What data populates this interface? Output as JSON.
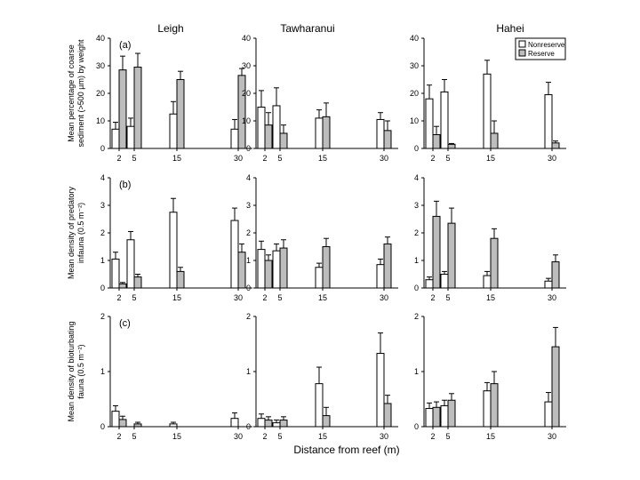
{
  "chart_data": {
    "type": "bar",
    "columns": [
      "Leigh",
      "Tawharanui",
      "Hahei"
    ],
    "x_tick_labels": [
      "2",
      "5",
      "15",
      "30"
    ],
    "xlabel": "Distance from reef (m)",
    "legend": {
      "placement": "top-right of Hahei panel (a)",
      "entries": [
        {
          "name": "Nonreserve",
          "color": "#ffffff"
        },
        {
          "name": "Reserve",
          "color": "#bdbdbd"
        }
      ]
    },
    "rows": [
      {
        "panel_label": "(a)",
        "ylabel_line1": "Mean percentage of coarse",
        "ylabel_line2": "sediment (>500 µm) by weight",
        "ylim": [
          0,
          40
        ],
        "yticks": [
          "0",
          "10",
          "20",
          "30",
          "40"
        ],
        "sites": [
          {
            "site": "Leigh",
            "nonreserve": {
              "values": [
                7,
                8,
                12.5,
                7
              ],
              "errors": [
                2.5,
                3,
                4.5,
                3.5
              ]
            },
            "reserve": {
              "values": [
                28.5,
                29.5,
                25,
                26.5
              ],
              "errors": [
                5,
                5,
                3,
                2.5
              ]
            }
          },
          {
            "site": "Tawharanui",
            "nonreserve": {
              "values": [
                15,
                15.5,
                11,
                10.5
              ],
              "errors": [
                6,
                6.5,
                3,
                2.5
              ]
            },
            "reserve": {
              "values": [
                8.5,
                5.5,
                11.5,
                6.5
              ],
              "errors": [
                4.5,
                3,
                5,
                3.5
              ]
            }
          },
          {
            "site": "Hahei",
            "nonreserve": {
              "values": [
                18,
                20.5,
                27,
                19.5
              ],
              "errors": [
                5,
                4.5,
                5,
                4.5
              ]
            },
            "reserve": {
              "values": [
                5,
                1.5,
                5.5,
                2
              ],
              "errors": [
                3,
                0.3,
                4.5,
                0.7
              ]
            }
          }
        ]
      },
      {
        "panel_label": "(b)",
        "ylabel_line1": "Mean density of predatory",
        "ylabel_line2": "infauna (0.5 m⁻²)",
        "ylim": [
          0,
          4
        ],
        "yticks": [
          "0",
          "1",
          "2",
          "3",
          "4"
        ],
        "sites": [
          {
            "site": "Leigh",
            "nonreserve": {
              "values": [
                1.05,
                1.75,
                2.75,
                2.45
              ],
              "errors": [
                0.25,
                0.3,
                0.5,
                0.45
              ]
            },
            "reserve": {
              "values": [
                0.15,
                0.4,
                0.6,
                1.3
              ],
              "errors": [
                0.05,
                0.1,
                0.15,
                0.3
              ]
            }
          },
          {
            "site": "Tawharanui",
            "nonreserve": {
              "values": [
                1.4,
                1.35,
                0.75,
                0.85
              ],
              "errors": [
                0.3,
                0.25,
                0.15,
                0.2
              ]
            },
            "reserve": {
              "values": [
                1.0,
                1.45,
                1.5,
                1.6
              ],
              "errors": [
                0.2,
                0.3,
                0.3,
                0.25
              ]
            }
          },
          {
            "site": "Hahei",
            "nonreserve": {
              "values": [
                0.3,
                0.5,
                0.45,
                0.25
              ],
              "errors": [
                0.1,
                0.1,
                0.15,
                0.1
              ]
            },
            "reserve": {
              "values": [
                2.6,
                2.35,
                1.8,
                0.95
              ],
              "errors": [
                0.55,
                0.55,
                0.35,
                0.25
              ]
            }
          }
        ]
      },
      {
        "panel_label": "(c)",
        "ylabel_line1": "Mean density of bioturbating",
        "ylabel_line2": "fauna (0.5 m⁻²)",
        "ylim": [
          0,
          2
        ],
        "yticks": [
          "0",
          "1",
          "2"
        ],
        "sites": [
          {
            "site": "Leigh",
            "nonreserve": {
              "values": [
                0.28,
                0,
                0.05,
                0.15
              ],
              "errors": [
                0.1,
                0,
                0.03,
                0.1
              ]
            },
            "reserve": {
              "values": [
                0.13,
                0.05,
                0,
                0
              ],
              "errors": [
                0.06,
                0.03,
                0,
                0
              ]
            }
          },
          {
            "site": "Tawharanui",
            "nonreserve": {
              "values": [
                0.15,
                0.07,
                0.78,
                1.33
              ],
              "errors": [
                0.08,
                0.05,
                0.3,
                0.37
              ]
            },
            "reserve": {
              "values": [
                0.12,
                0.12,
                0.2,
                0.42
              ],
              "errors": [
                0.06,
                0.06,
                0.15,
                0.15
              ]
            }
          },
          {
            "site": "Hahei",
            "nonreserve": {
              "values": [
                0.33,
                0.38,
                0.65,
                0.45
              ],
              "errors": [
                0.1,
                0.1,
                0.15,
                0.17
              ]
            },
            "reserve": {
              "values": [
                0.35,
                0.48,
                0.78,
                1.45
              ],
              "errors": [
                0.1,
                0.12,
                0.22,
                0.35
              ]
            }
          }
        ]
      }
    ]
  }
}
